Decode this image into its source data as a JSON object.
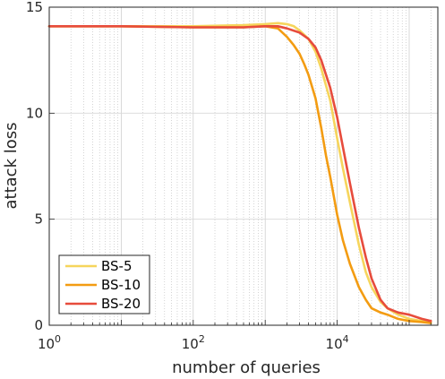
{
  "chart_data": {
    "type": "line",
    "xscale": "log",
    "xlim": [
      1,
      250000
    ],
    "ylim": [
      0,
      15
    ],
    "xlabel": "number of queries",
    "ylabel": "attack loss",
    "xticks": [
      {
        "base": "10",
        "exp": "0",
        "value": 1
      },
      {
        "base": "10",
        "exp": "2",
        "value": 100
      },
      {
        "base": "10",
        "exp": "4",
        "value": 10000
      }
    ],
    "yticks": [
      0,
      5,
      10,
      15
    ],
    "grid": "major-and-minor",
    "legend_position": "bottom-left",
    "series": [
      {
        "name": "BS-5",
        "color": "#f6d55c",
        "x": [
          1,
          10,
          100,
          500,
          1000,
          1500,
          2000,
          2500,
          3000,
          4000,
          5000,
          6000,
          8000,
          10000,
          12000,
          15000,
          20000,
          25000,
          30000,
          40000,
          50000,
          70000,
          100000,
          150000,
          200000
        ],
        "y": [
          14.1,
          14.1,
          14.1,
          14.15,
          14.2,
          14.25,
          14.2,
          14.1,
          13.9,
          13.5,
          12.9,
          12.1,
          10.6,
          8.8,
          7.4,
          5.8,
          3.8,
          2.5,
          1.8,
          1.1,
          0.8,
          0.5,
          0.3,
          0.2,
          0.2
        ]
      },
      {
        "name": "BS-10",
        "color": "#f39c12",
        "x": [
          1,
          10,
          100,
          500,
          1000,
          1500,
          2000,
          2500,
          3000,
          3500,
          4000,
          5000,
          6000,
          7000,
          8000,
          10000,
          12000,
          15000,
          20000,
          25000,
          30000,
          40000,
          50000,
          70000,
          100000,
          150000,
          200000
        ],
        "y": [
          14.1,
          14.1,
          14.05,
          14.05,
          14.1,
          14.0,
          13.6,
          13.2,
          12.8,
          12.3,
          11.8,
          10.7,
          9.3,
          8.0,
          7.0,
          5.2,
          4.0,
          2.9,
          1.8,
          1.2,
          0.8,
          0.6,
          0.5,
          0.3,
          0.2,
          0.15,
          0.1
        ]
      },
      {
        "name": "BS-20",
        "color": "#e74c3c",
        "x": [
          1,
          10,
          100,
          500,
          1000,
          1500,
          2000,
          3000,
          4000,
          5000,
          6000,
          8000,
          10000,
          12000,
          15000,
          20000,
          25000,
          30000,
          40000,
          50000,
          70000,
          100000,
          150000,
          200000
        ],
        "y": [
          14.1,
          14.1,
          14.05,
          14.05,
          14.1,
          14.1,
          14.0,
          13.8,
          13.5,
          13.1,
          12.5,
          11.2,
          9.8,
          8.4,
          6.7,
          4.6,
          3.2,
          2.2,
          1.2,
          0.8,
          0.6,
          0.5,
          0.3,
          0.2
        ]
      }
    ]
  }
}
